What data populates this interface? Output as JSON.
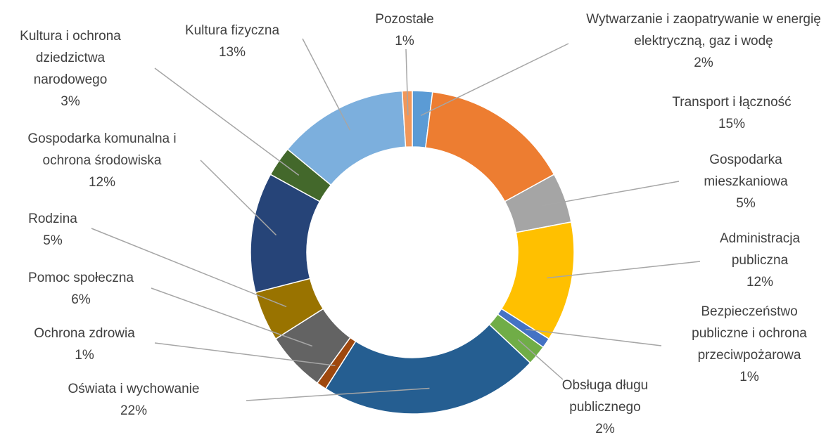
{
  "chart_data": {
    "type": "donut",
    "categories": [
      "Wytwarzanie i zaopatrywanie w energię elektryczną, gaz i wodę",
      "Transport i łączność",
      "Gospodarka mieszkaniowa",
      "Administracja publiczna",
      "Bezpieczeństwo publiczne i ochrona przeciwpożarowa",
      "Obsługa długu publicznego",
      "Oświata i wychowanie",
      "Ochrona zdrowia",
      "Pomoc społeczna",
      "Rodzina",
      "Gospodarka komunalna i ochrona środowiska",
      "Kultura i ochrona dziedzictwa narodowego",
      "Kultura fizyczna",
      "Pozostałe"
    ],
    "values": [
      2,
      15,
      5,
      12,
      1,
      2,
      22,
      1,
      6,
      5,
      12,
      3,
      13,
      1
    ],
    "value_labels": [
      "2%",
      "15%",
      "5%",
      "12%",
      "1%",
      "2%",
      "22%",
      "1%",
      "6%",
      "5%",
      "12%",
      "3%",
      "13%",
      "1%"
    ],
    "colors": [
      "#5B9BD5",
      "#ED7D31",
      "#A5A5A5",
      "#FFC000",
      "#4472C4",
      "#70AD47",
      "#255E91",
      "#9E480E",
      "#636363",
      "#997300",
      "#264478",
      "#43682B",
      "#7CAFDD",
      "#F1975A"
    ]
  }
}
